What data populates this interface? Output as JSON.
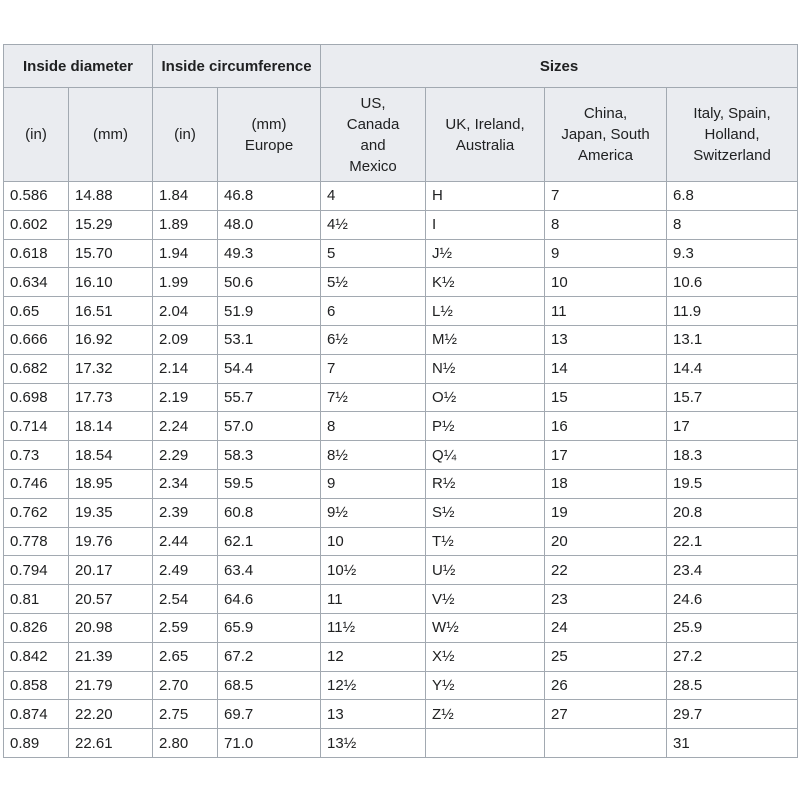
{
  "table": {
    "groups": [
      "Inside diameter",
      "Inside circumference",
      "Sizes"
    ],
    "columns": [
      "(in)",
      "(mm)",
      "(in)",
      "(mm)\nEurope",
      "US,\nCanada\nand\nMexico",
      "UK, Ireland,\nAustralia",
      "China,\nJapan, South\nAmerica",
      "Italy, Spain,\nHolland,\nSwitzerland"
    ],
    "rows": [
      [
        "0.586",
        "14.88",
        "1.84",
        "46.8",
        "4",
        "H",
        "7",
        "6.8"
      ],
      [
        "0.602",
        "15.29",
        "1.89",
        "48.0",
        "4½",
        "I",
        "8",
        "8"
      ],
      [
        "0.618",
        "15.70",
        "1.94",
        "49.3",
        "5",
        "J½",
        "9",
        "9.3"
      ],
      [
        "0.634",
        "16.10",
        "1.99",
        "50.6",
        "5½",
        "K½",
        "10",
        "10.6"
      ],
      [
        "0.65",
        "16.51",
        "2.04",
        "51.9",
        "6",
        "L½",
        "11",
        "11.9"
      ],
      [
        "0.666",
        "16.92",
        "2.09",
        "53.1",
        "6½",
        "M½",
        "13",
        "13.1"
      ],
      [
        "0.682",
        "17.32",
        "2.14",
        "54.4",
        "7",
        "N½",
        "14",
        "14.4"
      ],
      [
        "0.698",
        "17.73",
        "2.19",
        "55.7",
        "7½",
        "O½",
        "15",
        "15.7"
      ],
      [
        "0.714",
        "18.14",
        "2.24",
        "57.0",
        "8",
        "P½",
        "16",
        "17"
      ],
      [
        "0.73",
        "18.54",
        "2.29",
        "58.3",
        "8½",
        "Q¼",
        "17",
        "18.3"
      ],
      [
        "0.746",
        "18.95",
        "2.34",
        "59.5",
        "9",
        "R½",
        "18",
        "19.5"
      ],
      [
        "0.762",
        "19.35",
        "2.39",
        "60.8",
        "9½",
        "S½",
        "19",
        "20.8"
      ],
      [
        "0.778",
        "19.76",
        "2.44",
        "62.1",
        "10",
        "T½",
        "20",
        "22.1"
      ],
      [
        "0.794",
        "20.17",
        "2.49",
        "63.4",
        "10½",
        "U½",
        "22",
        "23.4"
      ],
      [
        "0.81",
        "20.57",
        "2.54",
        "64.6",
        "11",
        "V½",
        "23",
        "24.6"
      ],
      [
        "0.826",
        "20.98",
        "2.59",
        "65.9",
        "11½",
        "W½",
        "24",
        "25.9"
      ],
      [
        "0.842",
        "21.39",
        "2.65",
        "67.2",
        "12",
        "X½",
        "25",
        "27.2"
      ],
      [
        "0.858",
        "21.79",
        "2.70",
        "68.5",
        "12½",
        "Y½",
        "26",
        "28.5"
      ],
      [
        "0.874",
        "22.20",
        "2.75",
        "69.7",
        "13",
        "Z½",
        "27",
        "29.7"
      ],
      [
        "0.89",
        "22.61",
        "2.80",
        "71.0",
        "13½",
        null,
        "",
        "31"
      ]
    ]
  }
}
